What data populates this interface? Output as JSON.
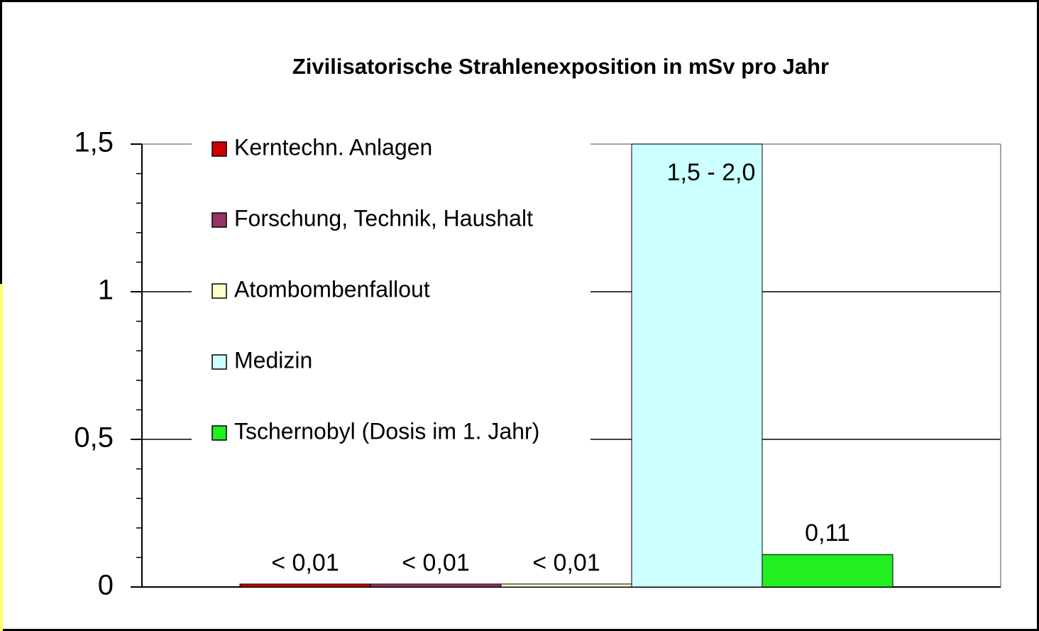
{
  "chart_data": {
    "type": "bar",
    "title": "Zivilisatorische Strahlenexposition in mSv pro Jahr",
    "series": [
      {
        "name": "Kerntechn. Anlagen",
        "color": "#cc0000",
        "values": [
          0.01
        ],
        "value_labels": [
          "< 0,01"
        ]
      },
      {
        "name": "Forschung, Technik, Haushalt",
        "color": "#993366",
        "values": [
          0.01
        ],
        "value_labels": [
          "< 0,01"
        ]
      },
      {
        "name": "Atombombenfallout",
        "color": "#ffffcc",
        "values": [
          0.01
        ],
        "value_labels": [
          "< 0,01"
        ]
      },
      {
        "name": "Medizin",
        "color": "#ccffff",
        "values": [
          1.5
        ],
        "value_labels": [
          "1,5 - 2,0"
        ]
      },
      {
        "name": "Tschernobyl  (Dosis im 1. Jahr)",
        "color": "#22ee22",
        "values": [
          0.11
        ],
        "value_labels": [
          "0,11"
        ]
      }
    ],
    "ylim": [
      0,
      1.5
    ],
    "yticks": [
      {
        "value": 0,
        "label": "0"
      },
      {
        "value": 0.5,
        "label": "0,5"
      },
      {
        "value": 1,
        "label": "1"
      },
      {
        "value": 1.5,
        "label": "1,5"
      }
    ],
    "minor_yticks": [
      0.1,
      0.2,
      0.3,
      0.4,
      0.6,
      0.7,
      0.8,
      0.9,
      1.1,
      1.2,
      1.3,
      1.4
    ],
    "grid": true,
    "legend": "upper left"
  }
}
